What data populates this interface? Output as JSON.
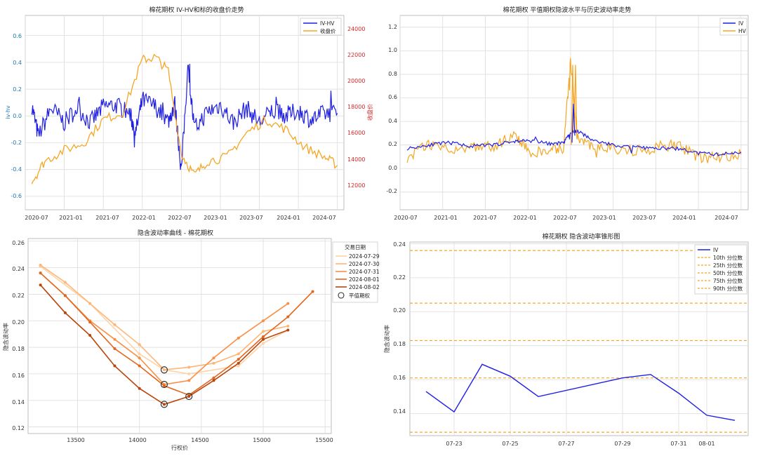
{
  "charts": {
    "c1": {
      "type": "line",
      "title": "棉花期权 IV-HV和标的收盘价走势",
      "ylabel_left": "iv-hv",
      "ylabel_right": "收盘价",
      "xticks": [
        "2020-07",
        "2021-01",
        "2021-07",
        "2022-01",
        "2022-07",
        "2023-01",
        "2023-07",
        "2024-01",
        "2024-07"
      ],
      "yticks_left": [
        "-0.6",
        "-0.4",
        "-0.2",
        "0.0",
        "0.2",
        "0.4",
        "0.6"
      ],
      "yticks_right": [
        "12000",
        "14000",
        "16000",
        "18000",
        "20000",
        "22000",
        "24000"
      ],
      "legend": [
        "IV-HV",
        "收盘价"
      ]
    },
    "c2": {
      "type": "line",
      "title": "棉花期权 平值期权隐波水平与历史波动率走势",
      "xticks": [
        "2020-07",
        "2021-01",
        "2021-07",
        "2022-01",
        "2022-07",
        "2023-01",
        "2023-07",
        "2024-01",
        "2024-07"
      ],
      "yticks": [
        "-0.2",
        "0.0",
        "0.2",
        "0.4",
        "0.6",
        "0.8",
        "1.0",
        "1.2"
      ],
      "legend": [
        "IV",
        "HV"
      ]
    },
    "c3": {
      "type": "line",
      "title": "隐含波动率曲线 - 棉花期权",
      "xlabel": "行权价",
      "ylabel": "隐含波动率",
      "xticks": [
        "13500",
        "14000",
        "14500",
        "15000",
        "15500"
      ],
      "yticks": [
        "0.12",
        "0.14",
        "0.16",
        "0.18",
        "0.20",
        "0.22",
        "0.24",
        "0.26"
      ],
      "legend_title": "交易日期",
      "legend": [
        "2024-07-29",
        "2024-07-30",
        "2024-07-31",
        "2024-08-01",
        "2024-08-02",
        "平值期权"
      ]
    },
    "c4": {
      "type": "line",
      "title": "棉花期权 隐含波动率锥形图",
      "ylabel": "隐含波动率",
      "xticks": [
        "07-23",
        "07-25",
        "07-27",
        "07-29",
        "07-31",
        "08-01"
      ],
      "yticks": [
        "0.14",
        "0.16",
        "0.18",
        "0.20",
        "0.22",
        "0.24"
      ],
      "legend": [
        "IV",
        "10th 分位数",
        "25th 分位数",
        "50th 分位数",
        "75th 分位数",
        "90th 分位数"
      ]
    }
  },
  "colors": {
    "blue": "#1f1fe6",
    "orange": "#f5a623",
    "red_axis": "#d62728",
    "blue_axis": "#1f77b4",
    "smile": [
      "#fdd3a6",
      "#fdb678",
      "#f98f45",
      "#e3661d",
      "#b8460c"
    ]
  },
  "chart_data": [
    {
      "type": "line",
      "title": "棉花期权 IV-HV和标的收盘价走势",
      "ylabel": "iv-hv",
      "y2label": "收盘价",
      "xlim": [
        "2020-07",
        "2024-08"
      ],
      "ylim": [
        -0.7,
        0.75
      ],
      "y2lim": [
        11000,
        25000
      ],
      "series": [
        {
          "name": "IV-HV",
          "axis": "left",
          "points": [
            [
              "2020-08",
              0.08
            ],
            [
              "2020-09",
              -0.15
            ],
            [
              "2020-11",
              0.06
            ],
            [
              "2021-01",
              -0.05
            ],
            [
              "2021-03",
              0.06
            ],
            [
              "2021-05",
              -0.05
            ],
            [
              "2021-07",
              0.07
            ],
            [
              "2021-09",
              0.08
            ],
            [
              "2021-11",
              0.02
            ],
            [
              "2021-12",
              -0.12
            ],
            [
              "2022-01",
              0.12
            ],
            [
              "2022-03",
              0.07
            ],
            [
              "2022-05",
              -0.04
            ],
            [
              "2022-06",
              0.09
            ],
            [
              "2022-07",
              -0.41
            ],
            [
              "2022-08",
              0.36
            ],
            [
              "2022-09",
              -0.1
            ],
            [
              "2022-11",
              0.03
            ],
            [
              "2023-01",
              0.08
            ],
            [
              "2023-03",
              -0.05
            ],
            [
              "2023-05",
              0.06
            ],
            [
              "2023-07",
              -0.05
            ],
            [
              "2023-09",
              0.04
            ],
            [
              "2023-11",
              0.0
            ],
            [
              "2024-01",
              0.04
            ],
            [
              "2024-03",
              -0.03
            ],
            [
              "2024-05",
              0.02
            ],
            [
              "2024-07",
              0.02
            ]
          ]
        },
        {
          "name": "收盘价",
          "axis": "right",
          "points": [
            [
              "2020-08",
              13000
            ],
            [
              "2020-10",
              14500
            ],
            [
              "2021-01",
              15300
            ],
            [
              "2021-04",
              15800
            ],
            [
              "2021-07",
              17500
            ],
            [
              "2021-10",
              18000
            ],
            [
              "2022-01",
              21800
            ],
            [
              "2022-03",
              22000
            ],
            [
              "2022-05",
              21000
            ],
            [
              "2022-07",
              15000
            ],
            [
              "2022-09",
              13500
            ],
            [
              "2022-11",
              14500
            ],
            [
              "2023-02",
              14800
            ],
            [
              "2023-05",
              16500
            ],
            [
              "2023-08",
              17500
            ],
            [
              "2023-11",
              16800
            ],
            [
              "2024-02",
              15500
            ],
            [
              "2024-05",
              14800
            ],
            [
              "2024-07",
              14200
            ]
          ]
        }
      ]
    },
    {
      "type": "line",
      "title": "棉花期权 平值期权隐波水平与历史波动率走势",
      "xlim": [
        "2020-07",
        "2024-08"
      ],
      "ylim": [
        -0.35,
        1.3
      ],
      "series": [
        {
          "name": "IV",
          "points": [
            [
              "2020-08",
              0.17
            ],
            [
              "2020-11",
              0.2
            ],
            [
              "2021-02",
              0.22
            ],
            [
              "2021-05",
              0.19
            ],
            [
              "2021-08",
              0.2
            ],
            [
              "2021-11",
              0.23
            ],
            [
              "2022-01",
              0.24
            ],
            [
              "2022-04",
              0.21
            ],
            [
              "2022-06",
              0.22
            ],
            [
              "2022-07",
              0.3
            ],
            [
              "2022-08",
              0.32
            ],
            [
              "2022-10",
              0.24
            ],
            [
              "2023-01",
              0.2
            ],
            [
              "2023-04",
              0.18
            ],
            [
              "2023-07",
              0.17
            ],
            [
              "2023-10",
              0.17
            ],
            [
              "2024-01",
              0.13
            ],
            [
              "2024-04",
              0.12
            ],
            [
              "2024-07",
              0.14
            ]
          ]
        },
        {
          "name": "HV",
          "points": [
            [
              "2020-08",
              0.1
            ],
            [
              "2020-11",
              0.2
            ],
            [
              "2021-02",
              0.18
            ],
            [
              "2021-05",
              0.17
            ],
            [
              "2021-08",
              0.18
            ],
            [
              "2021-11",
              0.3
            ],
            [
              "2022-01",
              0.15
            ],
            [
              "2022-04",
              0.14
            ],
            [
              "2022-06",
              0.18
            ],
            [
              "2022-07",
              0.9
            ],
            [
              "2022-08",
              0.25
            ],
            [
              "2022-10",
              0.2
            ],
            [
              "2023-01",
              0.16
            ],
            [
              "2023-04",
              0.15
            ],
            [
              "2023-07",
              0.18
            ],
            [
              "2023-10",
              0.2
            ],
            [
              "2024-01",
              0.1
            ],
            [
              "2024-04",
              0.09
            ],
            [
              "2024-07",
              0.12
            ]
          ]
        }
      ]
    },
    {
      "type": "line",
      "title": "隐含波动率曲线 - 棉花期权",
      "xlabel": "行权价",
      "ylabel": "隐含波动率",
      "xlim": [
        13100,
        15550
      ],
      "ylim": [
        0.115,
        0.262
      ],
      "series": [
        {
          "name": "2024-07-29",
          "x": [
            13200,
            13600,
            14000,
            14200,
            14400,
            14800,
            15000,
            15200
          ],
          "values": [
            0.241,
            0.213,
            0.175,
            0.163,
            0.16,
            0.166,
            0.183,
            0.193
          ]
        },
        {
          "name": "2024-07-30",
          "x": [
            13200,
            13400,
            13600,
            13800,
            14000,
            14200,
            14400,
            14600,
            14800,
            15000,
            15200
          ],
          "values": [
            0.242,
            0.229,
            0.213,
            0.197,
            0.182,
            0.163,
            0.165,
            0.168,
            0.175,
            0.192,
            0.196
          ]
        },
        {
          "name": "2024-07-31",
          "x": [
            13200,
            13400,
            13600,
            13800,
            14000,
            14200,
            14400,
            14600,
            14800,
            15000,
            15200
          ],
          "values": [
            0.236,
            0.219,
            0.2,
            0.186,
            0.172,
            0.152,
            0.155,
            0.172,
            0.187,
            0.2,
            0.213
          ]
        },
        {
          "name": "2024-08-01",
          "x": [
            13200,
            13400,
            13600,
            13800,
            14000,
            14200,
            14400,
            14600,
            14800,
            15000,
            15200,
            15400
          ],
          "values": [
            0.236,
            0.219,
            0.199,
            0.179,
            0.166,
            0.151,
            0.144,
            0.157,
            0.171,
            0.188,
            0.203,
            0.222
          ]
        },
        {
          "name": "2024-08-02",
          "x": [
            13200,
            13400,
            13600,
            13800,
            14000,
            14200,
            14400,
            14600,
            14800,
            15000,
            15200
          ],
          "values": [
            0.227,
            0.206,
            0.189,
            0.166,
            0.149,
            0.137,
            0.143,
            0.155,
            0.168,
            0.186,
            0.193
          ]
        }
      ],
      "atm_points": [
        [
          14200,
          0.163
        ],
        [
          14200,
          0.152
        ],
        [
          14200,
          0.137
        ],
        [
          14400,
          0.143
        ]
      ]
    },
    {
      "type": "line",
      "title": "棉花期权 隐含波动率锥形图",
      "ylabel": "隐含波动率",
      "ylim": [
        0.127,
        0.241
      ],
      "series": [
        {
          "name": "IV",
          "x": [
            "07-22",
            "07-23",
            "07-24",
            "07-25",
            "07-26",
            "07-29",
            "07-30",
            "07-31",
            "08-01",
            "08-02"
          ],
          "values": [
            0.153,
            0.141,
            0.169,
            0.162,
            0.15,
            0.161,
            0.163,
            0.152,
            0.139,
            0.136
          ]
        }
      ],
      "percentiles": [
        {
          "name": "10th 分位数",
          "value": 0.129
        },
        {
          "name": "25th 分位数",
          "value": 0.161
        },
        {
          "name": "50th 分位数",
          "value": 0.183
        },
        {
          "name": "75th 分位数",
          "value": 0.205
        },
        {
          "name": "90th 分位数",
          "value": 0.236
        }
      ]
    }
  ]
}
